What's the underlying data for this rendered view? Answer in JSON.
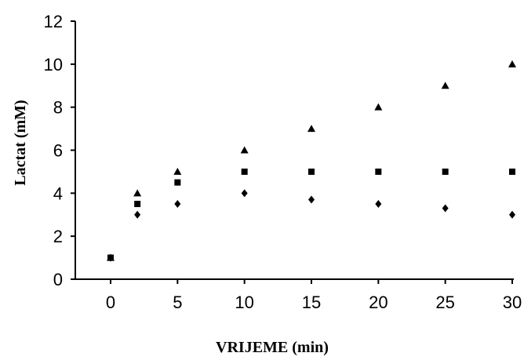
{
  "chart_data": {
    "type": "scatter",
    "title": "",
    "xlabel": "VRIJEME (min)",
    "ylabel": "Lactat   (mM)",
    "xlim": [
      -3,
      30
    ],
    "ylim": [
      0,
      12
    ],
    "xticks": [
      "0",
      "5",
      "10",
      "15",
      "20",
      "25",
      "30"
    ],
    "yticks": [
      "0",
      "2",
      "4",
      "6",
      "8",
      "10",
      "12"
    ],
    "grid": false,
    "legend": "none",
    "color": "#000000",
    "series": [
      {
        "marker": "triangle",
        "x": [
          0,
          2,
          5,
          10,
          15,
          20,
          25,
          30
        ],
        "y": [
          1,
          4,
          5,
          6,
          7,
          8,
          9,
          10
        ]
      },
      {
        "marker": "square",
        "x": [
          0,
          2,
          5,
          10,
          15,
          20,
          25,
          30
        ],
        "y": [
          1,
          3.5,
          4.5,
          5,
          5,
          5,
          5,
          5
        ]
      },
      {
        "marker": "diamond",
        "x": [
          0,
          2,
          5,
          10,
          15,
          20,
          25,
          30
        ],
        "y": [
          1,
          3,
          3.5,
          4,
          3.7,
          3.5,
          3.3,
          3
        ]
      }
    ]
  }
}
